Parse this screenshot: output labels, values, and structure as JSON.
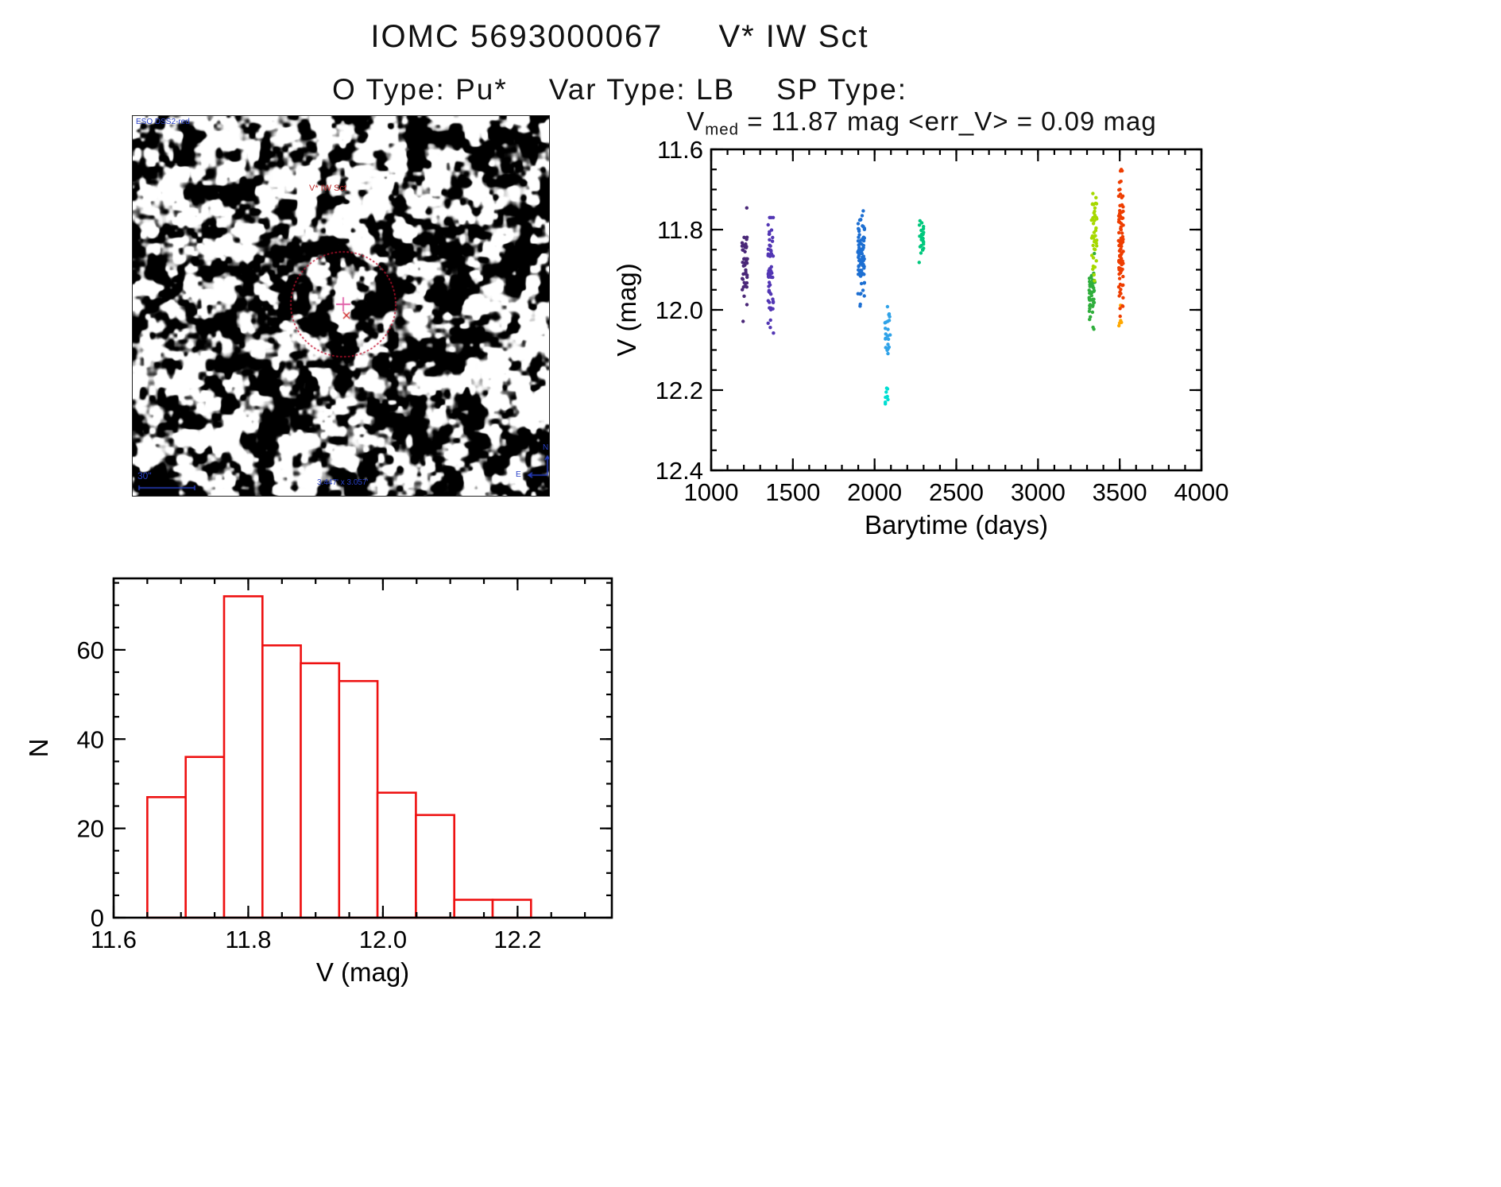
{
  "header": {
    "catalog_id": "IOMC 5693000067",
    "star_name": "V* IW Sct",
    "otype_label": "O Type: Pu*",
    "vartype_label": "Var Type: LB",
    "sptype_label": "SP Type:"
  },
  "finder": {
    "survey_label": "ESO DSS2-red",
    "target_label": "V* IW Sct",
    "scale_label": "30\"",
    "fov_label": "3.447' x 3.057'",
    "north_label": "N",
    "east_label": "E"
  },
  "chart_data": [
    {
      "id": "lightcurve",
      "type": "scatter",
      "title_prefix": "V",
      "title_sub": "med",
      "title_rest": " = 11.87 mag <err_V> = 0.09 mag",
      "xlabel": "Barytime (days)",
      "ylabel": "V (mag)",
      "xlim": [
        1000,
        4000
      ],
      "ylim_top": 11.6,
      "ylim_bottom": 12.4,
      "y_axis_inverted": true,
      "x_minor_step": 100,
      "y_minor_step": 0.05,
      "marker_radius": 2.2,
      "x_ticks": [
        {
          "v": 1000,
          "label": "1000"
        },
        {
          "v": 1500,
          "label": "1500"
        },
        {
          "v": 2000,
          "label": "2000"
        },
        {
          "v": 2500,
          "label": "2500"
        },
        {
          "v": 3000,
          "label": "3000"
        },
        {
          "v": 3500,
          "label": "3500"
        },
        {
          "v": 4000,
          "label": "4000"
        }
      ],
      "y_ticks": [
        {
          "v": 11.6,
          "label": "11.6"
        },
        {
          "v": 11.8,
          "label": "11.8"
        },
        {
          "v": 12.0,
          "label": "12.0"
        },
        {
          "v": 12.2,
          "label": "12.2"
        },
        {
          "v": 12.4,
          "label": "12.4"
        }
      ],
      "clusters": [
        {
          "name": "epoch-1200",
          "color": "#4a2878",
          "x_range": [
            1188,
            1222
          ],
          "n": 42,
          "v_mean": 11.885,
          "v_sd": 0.055,
          "v_range": [
            11.73,
            12.08
          ]
        },
        {
          "name": "epoch-1365",
          "color": "#5236b4",
          "x_range": [
            1348,
            1382
          ],
          "n": 58,
          "v_mean": 11.905,
          "v_sd": 0.075,
          "v_range": [
            11.77,
            12.14
          ]
        },
        {
          "name": "epoch-1930",
          "color": "#1d6fd2",
          "x_range": [
            1898,
            1938
          ],
          "n": 85,
          "v_mean": 11.865,
          "v_sd": 0.05,
          "v_range": [
            11.69,
            12.0
          ]
        },
        {
          "name": "epoch-2090-skyblue",
          "color": "#2fa2e8",
          "x_range": [
            2062,
            2098
          ],
          "n": 22,
          "v_mean": 12.055,
          "v_sd": 0.04,
          "v_range": [
            11.97,
            12.14
          ]
        },
        {
          "name": "epoch-2090-cyan",
          "color": "#00ded2",
          "x_range": [
            2066,
            2088
          ],
          "n": 8,
          "v_mean": 12.21,
          "v_sd": 0.02,
          "v_range": [
            12.17,
            12.25
          ]
        },
        {
          "name": "epoch-2290",
          "color": "#00c87d",
          "x_range": [
            2272,
            2300
          ],
          "n": 26,
          "v_mean": 11.82,
          "v_sd": 0.024,
          "v_range": [
            11.77,
            11.885
          ]
        },
        {
          "name": "epoch-3330-green",
          "color": "#2fae3c",
          "x_range": [
            3312,
            3348
          ],
          "n": 48,
          "v_mean": 11.955,
          "v_sd": 0.04,
          "v_range": [
            11.855,
            12.05
          ]
        },
        {
          "name": "epoch-3340-yellowgreen",
          "color": "#a6d800",
          "x_range": [
            3326,
            3360
          ],
          "n": 42,
          "v_mean": 11.815,
          "v_sd": 0.055,
          "v_range": [
            11.71,
            11.97
          ]
        },
        {
          "name": "epoch-3510-orange",
          "color": "#ffa800",
          "x_range": [
            3494,
            3512
          ],
          "n": 5,
          "v_mean": 11.985,
          "v_sd": 0.04,
          "v_range": [
            11.92,
            12.04
          ]
        },
        {
          "name": "epoch-3515-red",
          "color": "#ee3d00",
          "x_range": [
            3492,
            3522
          ],
          "n": 88,
          "v_mean": 11.82,
          "v_sd": 0.09,
          "v_range": [
            11.65,
            12.12
          ]
        }
      ]
    },
    {
      "id": "histogram",
      "type": "histogram",
      "xlabel": "V (mag)",
      "ylabel": "N",
      "xlim": [
        11.6,
        12.34
      ],
      "ylim": [
        0,
        76
      ],
      "x_minor_step": 0.05,
      "y_minor_step": 5,
      "bar_color": "#ee1111",
      "bin_start": 11.65,
      "bin_width": 0.057,
      "counts": [
        27,
        36,
        72,
        61,
        57,
        53,
        28,
        23,
        4,
        4
      ],
      "x_ticks": [
        {
          "v": 11.6,
          "label": "11.6"
        },
        {
          "v": 11.8,
          "label": "11.8"
        },
        {
          "v": 12.0,
          "label": "12.0"
        },
        {
          "v": 12.2,
          "label": "12.2"
        }
      ],
      "y_ticks": [
        {
          "v": 0,
          "label": "0"
        },
        {
          "v": 20,
          "label": "20"
        },
        {
          "v": 40,
          "label": "40"
        },
        {
          "v": 60,
          "label": "60"
        }
      ]
    }
  ]
}
